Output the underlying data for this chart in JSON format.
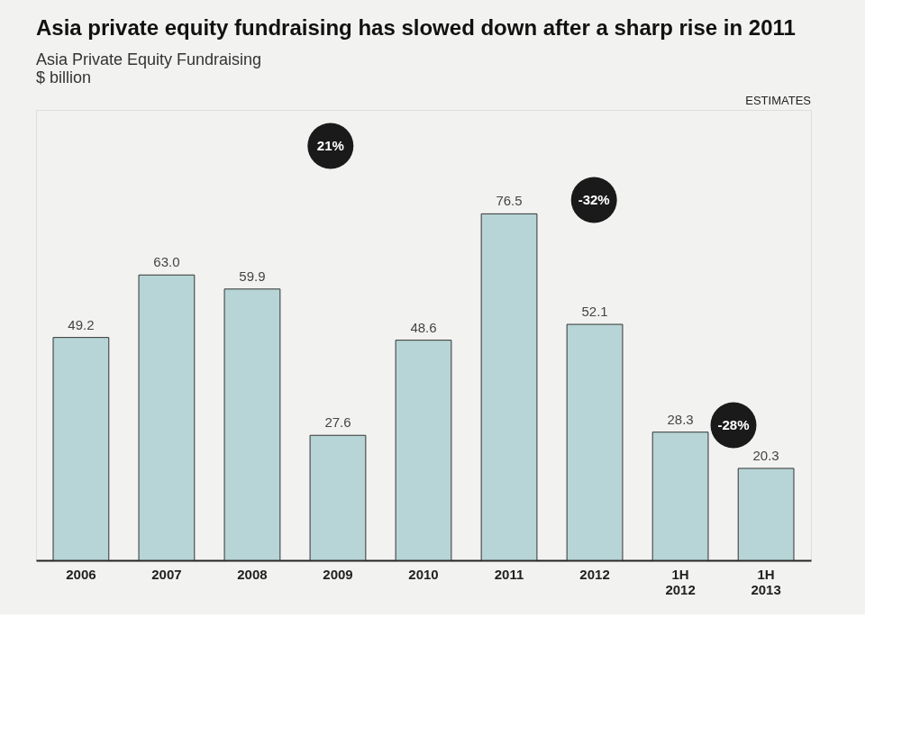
{
  "chart_data": {
    "type": "bar",
    "title": "Asia private equity fundraising has slowed down after a sharp rise in 2011",
    "subtitle": "Asia Private Equity Fundraising",
    "categories": [
      "2006",
      "2007",
      "2008",
      "2009",
      "2010",
      "2011",
      "2012",
      "1H 2012",
      "1H 2013"
    ],
    "values": [
      49.2,
      63.0,
      59.9,
      27.6,
      48.6,
      76.5,
      52.1,
      28.3,
      20.3
    ],
    "color": "#b7d5d6",
    "value_labels": [
      "49.2",
      "63.0",
      "59.9",
      "27.6",
      "48.6",
      "76.5",
      "52.1",
      "28.3",
      "20.3"
    ],
    "annotations": [
      "$ billion",
      "21%",
      "-32%",
      "-28%",
      "ESTIMATES"
    ]
  }
}
